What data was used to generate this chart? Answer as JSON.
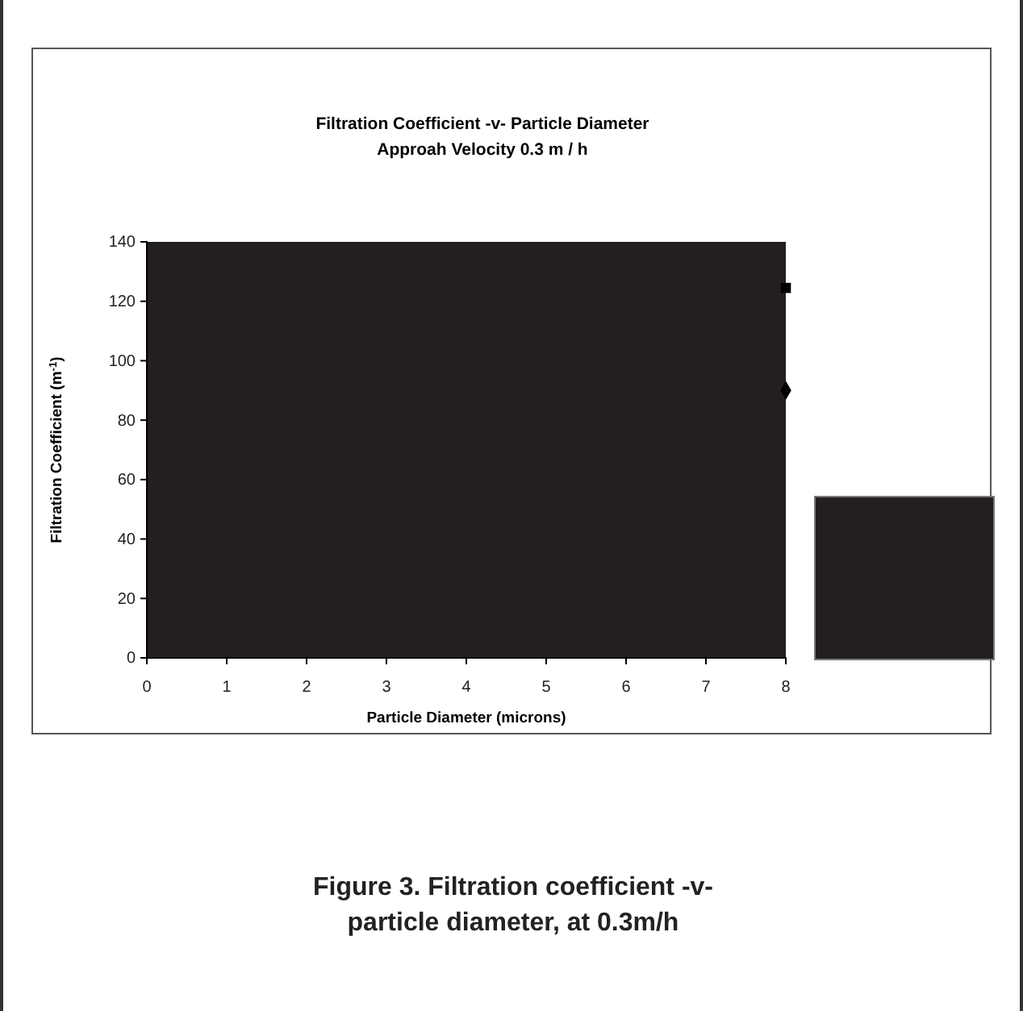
{
  "chart_data": {
    "type": "scatter",
    "title": "Filtration Coefficient -v- Particle Diameter",
    "subtitle": "Approah Velocity 0.3 m / h",
    "xlabel": "Particle Diameter (microns)",
    "ylabel": "Filtration Coefficient (m$^{-1}$)",
    "series": [
      {
        "x": [
          8
        ],
        "values": [
          124.5
        ],
        "color": "#000000",
        "marker": "square"
      },
      {
        "x": [
          8
        ],
        "values": [
          90
        ],
        "color": "#000000",
        "marker": "diamond"
      }
    ],
    "xlim": [
      0,
      8
    ],
    "xticks": [
      0,
      1,
      2,
      3,
      4,
      5,
      6,
      7,
      8
    ],
    "ylim": [
      0,
      140
    ],
    "yticks": [
      0,
      20,
      40,
      60,
      80,
      100,
      120,
      140
    ],
    "grid": false,
    "annotations": [
      "Figure 3. Filtration coefficient -v- particle diameter, at 0.3m/h"
    ]
  }
}
